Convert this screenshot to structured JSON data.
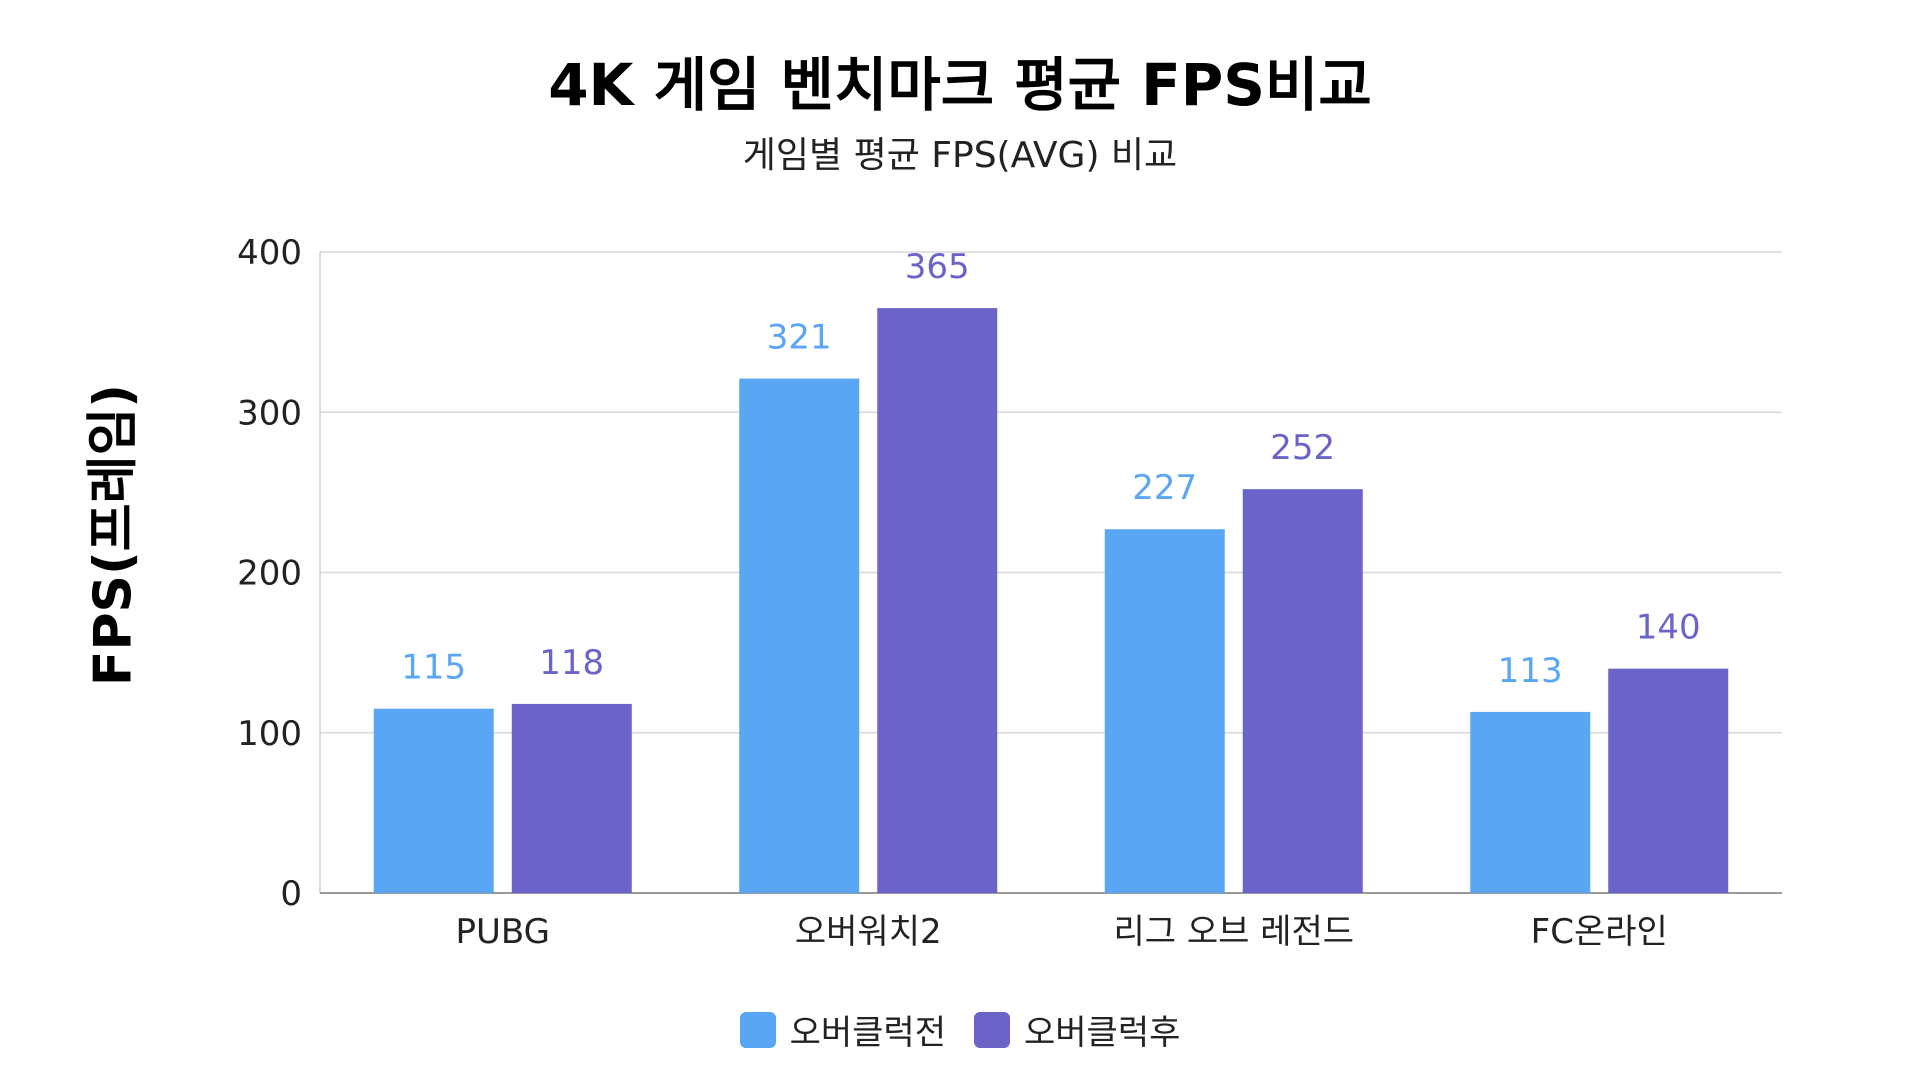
{
  "chart_data": {
    "type": "bar",
    "title": "4K 게임 벤치마크 평균 FPS비교",
    "subtitle": "게임별 평균 FPS(AVG) 비교",
    "xlabel": "",
    "ylabel": "FPS(프레임)",
    "categories": [
      "PUBG",
      "오버워치2",
      "리그 오브 레전드",
      "FC온라인"
    ],
    "series": [
      {
        "name": "오버클럭전",
        "color": "#5aa6f5",
        "values": [
          115,
          321,
          227,
          113
        ]
      },
      {
        "name": "오버클럭후",
        "color": "#6a64c8",
        "values": [
          118,
          365,
          252,
          140
        ]
      }
    ],
    "ylim": [
      0,
      400
    ],
    "yticks": [
      0,
      100,
      200,
      300,
      400
    ],
    "grid": true,
    "legend_position": "bottom-center"
  }
}
